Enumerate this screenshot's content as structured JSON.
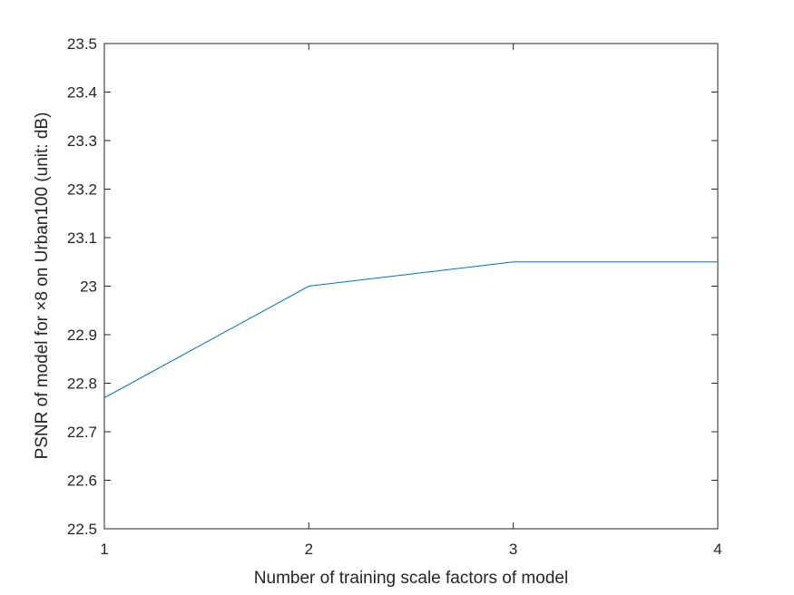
{
  "chart_data": {
    "type": "line",
    "title": "",
    "xlabel": "Number of training scale factors of model",
    "ylabel": "PSNR of model for ×8 on Urban100 (unit: dB)",
    "xlim": [
      1,
      4
    ],
    "ylim": [
      22.5,
      23.5
    ],
    "xticks": [
      "1",
      "2",
      "3",
      "4"
    ],
    "yticks": [
      "22.5",
      "22.6",
      "22.7",
      "22.8",
      "22.9",
      "23",
      "23.1",
      "23.2",
      "23.3",
      "23.4",
      "23.5"
    ],
    "grid": false,
    "series": [
      {
        "x": [
          1,
          2,
          3,
          4
        ],
        "values": [
          22.77,
          23.0,
          23.05,
          23.05
        ],
        "color": "#0072BD"
      }
    ]
  }
}
